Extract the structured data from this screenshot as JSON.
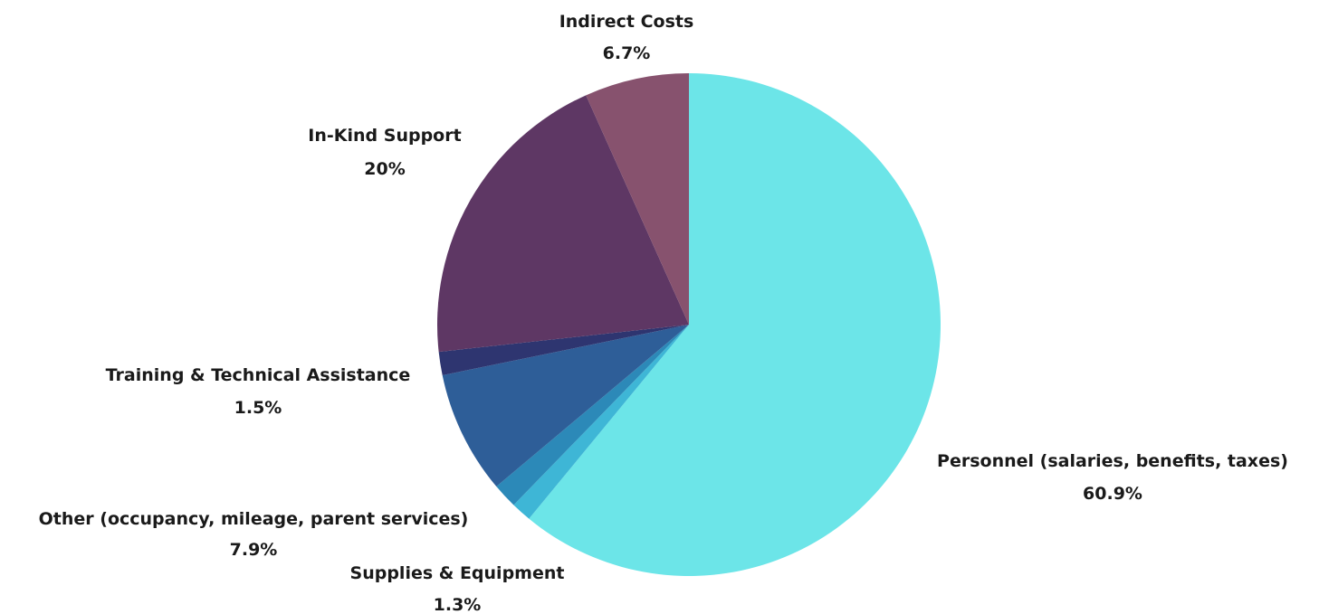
{
  "chart_data": {
    "type": "pie",
    "title": "",
    "start_angle_deg": 0,
    "direction": "clockwise",
    "slices": [
      {
        "label": "Personnel (salaries, benefits, taxes)",
        "value": 60.9,
        "value_label": "60.9%",
        "color": "#6ce5e8"
      },
      {
        "label": "Supplies & Equipment",
        "value": 1.3,
        "value_label": "1.3%",
        "color": "#3eb6d6"
      },
      {
        "label": "",
        "value": 1.6,
        "value_label": "",
        "color": "#2c89b8"
      },
      {
        "label": "Other (occupancy, mileage, parent services)",
        "value": 7.9,
        "value_label": "7.9%",
        "color": "#2e5e98"
      },
      {
        "label": "Training & Technical Assistance",
        "value": 1.5,
        "value_label": "1.5%",
        "color": "#2e3570"
      },
      {
        "label": "In-Kind Support",
        "value": 20,
        "value_label": "20%",
        "color": "#5e3764"
      },
      {
        "label": "Indirect Costs",
        "value": 6.7,
        "value_label": "6.7%",
        "color": "#87526e"
      }
    ]
  }
}
